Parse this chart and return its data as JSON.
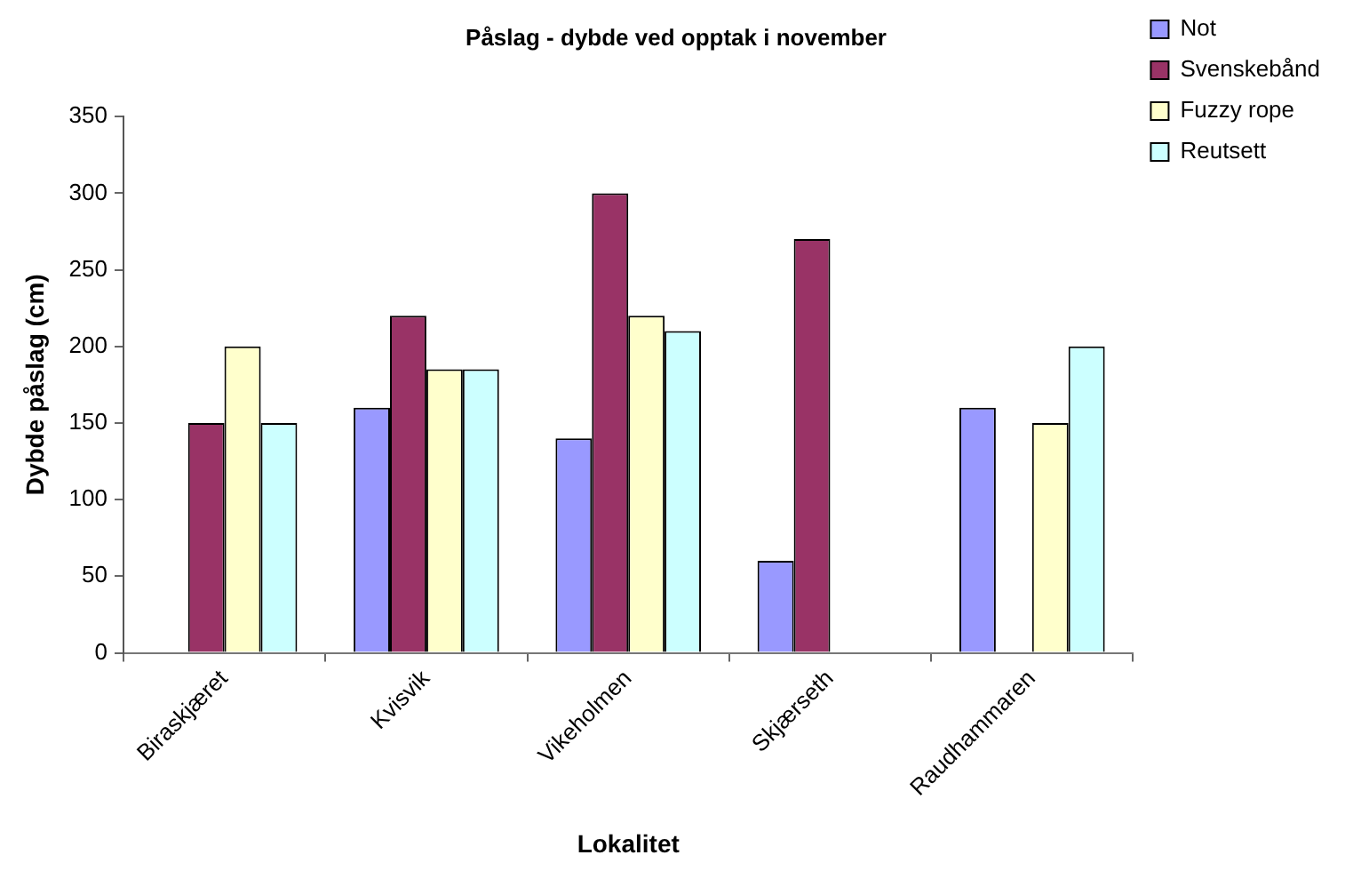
{
  "chart_data": {
    "type": "bar",
    "title": "Påslag - dybde ved opptak i november",
    "xlabel": "Lokalitet",
    "ylabel": "Dybde påslag (cm)",
    "categories": [
      "Biraskjæret",
      "Kvisvik",
      "Vikeholmen",
      "Skjærseth",
      "Raudhammaren"
    ],
    "series": [
      {
        "name": "Not",
        "color": "#9999ff",
        "values": [
          null,
          160,
          140,
          60,
          160
        ]
      },
      {
        "name": "Svenskebånd",
        "color": "#993366",
        "values": [
          150,
          220,
          300,
          270,
          null
        ]
      },
      {
        "name": "Fuzzy rope",
        "color": "#ffffcc",
        "values": [
          200,
          185,
          220,
          null,
          150
        ]
      },
      {
        "name": "Reutsett",
        "color": "#ccffff",
        "values": [
          150,
          185,
          210,
          null,
          200
        ]
      }
    ],
    "ylim": [
      0,
      350
    ],
    "yticks": [
      0,
      50,
      100,
      150,
      200,
      250,
      300,
      350
    ],
    "grid": false,
    "legend": "top right"
  }
}
